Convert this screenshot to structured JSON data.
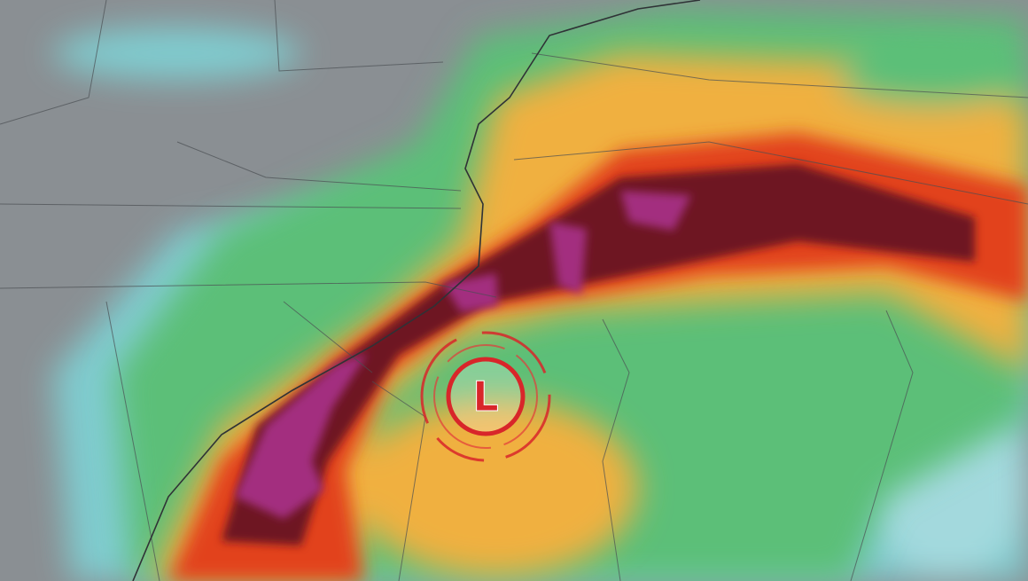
{
  "map": {
    "low_pressure_label": "L",
    "colors": {
      "land_background": "#8a8f93",
      "light_precip": "#7fd3d6",
      "moderate_precip": "#5cbf78",
      "heavy_precip": "#f0b040",
      "very_heavy_precip": "#e2421c",
      "extreme_precip": "#6e1224",
      "max_precip": "#a32f7f",
      "low_symbol": "#d8262a"
    }
  }
}
